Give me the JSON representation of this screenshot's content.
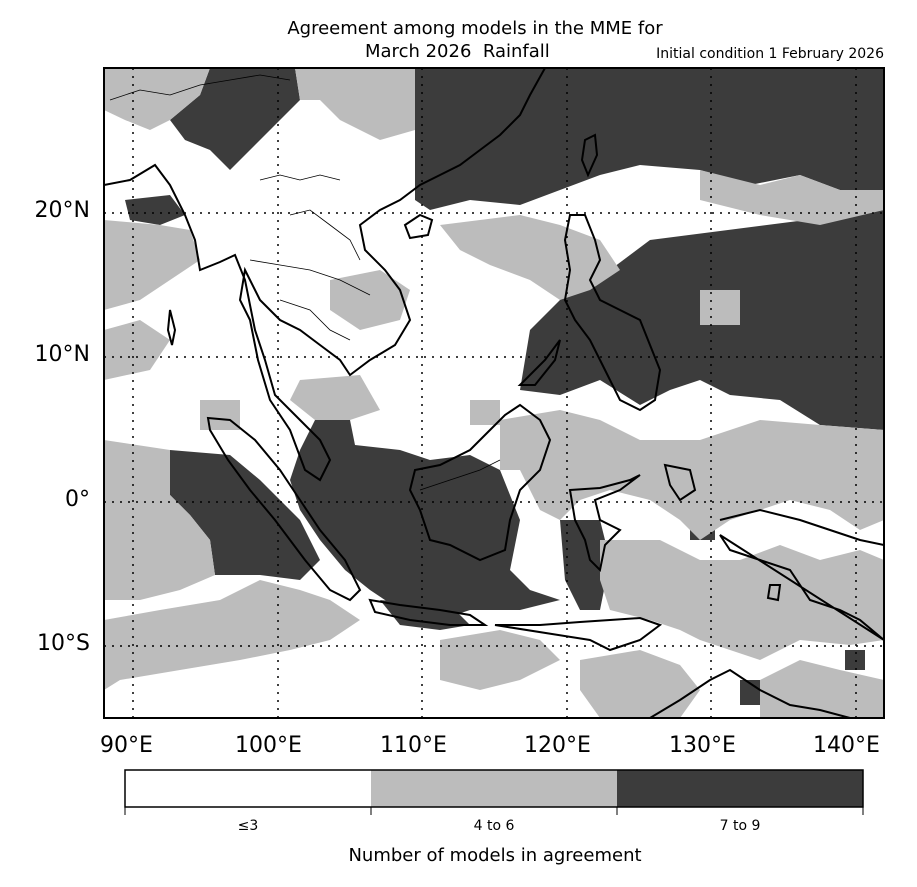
{
  "title": {
    "line1": "Agreement among models in the MME for",
    "line2": "March 2026  Rainfall",
    "initial_condition": "Initial condition 1 February 2026"
  },
  "axes": {
    "lat_labels": [
      "20°N",
      "10°N",
      "0°",
      "10°S"
    ],
    "lon_labels": [
      "90°E",
      "100°E",
      "110°E",
      "120°E",
      "130°E",
      "140°E"
    ],
    "lat_range": [
      -15,
      30
    ],
    "lon_range": [
      88,
      142
    ],
    "gridlines": "dotted"
  },
  "colorbar": {
    "title": "Number of models in agreement",
    "categories": [
      {
        "label": "≤3",
        "color": "#ffffff"
      },
      {
        "label": "4 to 6",
        "color": "#bcbcbc"
      },
      {
        "label": "7 to 9",
        "color": "#3c3c3c"
      }
    ]
  },
  "colors": {
    "low": "#ffffff",
    "mid": "#bcbcbc",
    "high": "#3c3c3c",
    "coast": "#000000"
  }
}
